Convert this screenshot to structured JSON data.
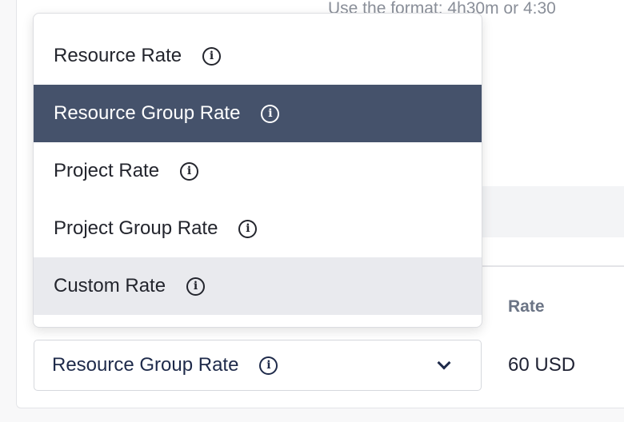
{
  "helper_text": "Use the format: 4h30m or 4:30",
  "dropdown": {
    "options": [
      {
        "label": "Resource Rate",
        "state": "default"
      },
      {
        "label": "Resource Group Rate",
        "state": "selected"
      },
      {
        "label": "Project Rate",
        "state": "default"
      },
      {
        "label": "Project Group Rate",
        "state": "default"
      },
      {
        "label": "Custom Rate",
        "state": "hover"
      }
    ],
    "selected_color": "#45526b"
  },
  "select": {
    "value": "Resource Group Rate",
    "icon": "chevron-down-icon"
  },
  "rate_column": {
    "header": "Rate",
    "value": "60 USD"
  }
}
